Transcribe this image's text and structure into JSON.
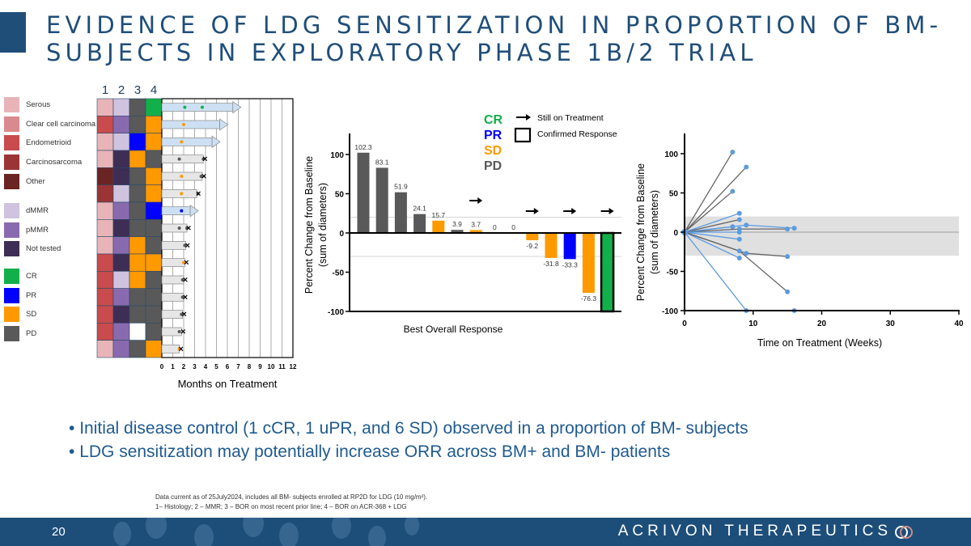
{
  "title": {
    "line1": "EVIDENCE OF LDG SENSITIZATION IN PROPORTION OF BM-",
    "line2": "SUBJECTS IN EXPLORATORY PHASE 1B/2 TRIAL"
  },
  "colors": {
    "Serous": "#e8b4b8",
    "Clear cell carcinoma": "#d98a8e",
    "Endometrioid": "#c94b4d",
    "Carcinosarcoma": "#9b3535",
    "Other": "#6b2424",
    "dMMR": "#cfc3e0",
    "pMMR": "#8a6aae",
    "Not tested": "#3e2d55",
    "CR": "#12b04a",
    "PR": "#0000ff",
    "SD": "#ff9900",
    "PD": "#595959",
    "NA": "#ffffff",
    "accent": "#1f4e79"
  },
  "legend": {
    "histology": [
      "Serous",
      "Clear cell carcinoma",
      "Endometrioid",
      "Carcinosarcoma",
      "Other"
    ],
    "mmr": [
      "dMMR",
      "pMMR",
      "Not tested"
    ],
    "response": [
      "CR",
      "PR",
      "SD",
      "PD"
    ]
  },
  "chart_data": [
    {
      "type": "heatmap",
      "column_labels": [
        "1",
        "2",
        "3",
        "4"
      ],
      "rows": [
        [
          "Serous",
          "dMMR",
          "PD",
          "CR"
        ],
        [
          "Endometrioid",
          "pMMR",
          "PD",
          "SD"
        ],
        [
          "Serous",
          "dMMR",
          "PR",
          "SD"
        ],
        [
          "Serous",
          "Not tested",
          "SD",
          "PD"
        ],
        [
          "Other",
          "Not tested",
          "PD",
          "SD"
        ],
        [
          "Carcinosarcoma",
          "dMMR",
          "PD",
          "SD"
        ],
        [
          "Serous",
          "pMMR",
          "PD",
          "PR"
        ],
        [
          "Serous",
          "Not tested",
          "PD",
          "PD"
        ],
        [
          "Serous",
          "pMMR",
          "SD",
          "PD"
        ],
        [
          "Endometrioid",
          "Not tested",
          "SD",
          "SD"
        ],
        [
          "Endometrioid",
          "dMMR",
          "SD",
          "PD"
        ],
        [
          "Endometrioid",
          "pMMR",
          "PD",
          "PD"
        ],
        [
          "Endometrioid",
          "Not tested",
          "PD",
          "PD"
        ],
        [
          "Endometrioid",
          "pMMR",
          "NA",
          "PD"
        ],
        [
          "Serous",
          "pMMR",
          "PD",
          "SD"
        ]
      ]
    },
    {
      "type": "bar",
      "orientation": "horizontal",
      "xlabel": "Months on Treatment",
      "xlim": [
        0,
        12
      ],
      "xticks": [
        0,
        1,
        2,
        3,
        4,
        5,
        6,
        7,
        8,
        9,
        10,
        11,
        12
      ],
      "bars": [
        {
          "months": 6.5,
          "ongoing": true,
          "assessments": [
            {
              "t": 2.1,
              "r": "CR"
            },
            {
              "t": 3.7,
              "r": "CR"
            }
          ]
        },
        {
          "months": 5.3,
          "ongoing": true,
          "assessments": [
            {
              "t": 2.0,
              "r": "SD"
            }
          ]
        },
        {
          "months": 4.6,
          "ongoing": true,
          "assessments": [
            {
              "t": 1.8,
              "r": "SD"
            }
          ]
        },
        {
          "months": 3.8,
          "ongoing": false,
          "assessments": [
            {
              "t": 1.6,
              "r": "PD"
            },
            {
              "t": 3.8,
              "r": "PD"
            }
          ]
        },
        {
          "months": 3.7,
          "ongoing": false,
          "assessments": [
            {
              "t": 1.8,
              "r": "SD"
            },
            {
              "t": 3.6,
              "r": "PD"
            }
          ]
        },
        {
          "months": 3.2,
          "ongoing": false,
          "assessments": [
            {
              "t": 1.8,
              "r": "SD"
            },
            {
              "t": 3.3,
              "r": "PD"
            }
          ]
        },
        {
          "months": 2.6,
          "ongoing": true,
          "assessments": [
            {
              "t": 1.8,
              "r": "PR"
            }
          ]
        },
        {
          "months": 2.3,
          "ongoing": false,
          "assessments": [
            {
              "t": 1.6,
              "r": "PD"
            },
            {
              "t": 2.3,
              "r": "PD"
            }
          ]
        },
        {
          "months": 2.2,
          "ongoing": false,
          "assessments": [
            {
              "t": 2.1,
              "r": "PD"
            }
          ]
        },
        {
          "months": 2.1,
          "ongoing": false,
          "assessments": [
            {
              "t": 2.0,
              "r": "SD"
            }
          ]
        },
        {
          "months": 2.0,
          "ongoing": false,
          "assessments": [
            {
              "t": 1.9,
              "r": "PD"
            }
          ]
        },
        {
          "months": 2.0,
          "ongoing": false,
          "assessments": [
            {
              "t": 1.9,
              "r": "PD"
            }
          ]
        },
        {
          "months": 1.9,
          "ongoing": false,
          "assessments": [
            {
              "t": 1.8,
              "r": "PD"
            }
          ]
        },
        {
          "months": 1.8,
          "ongoing": false,
          "assessments": [
            {
              "t": 1.6,
              "r": "PD"
            }
          ]
        },
        {
          "months": 1.6,
          "ongoing": false,
          "assessments": [
            {
              "t": 1.6,
              "r": "SD"
            }
          ]
        }
      ]
    },
    {
      "type": "bar",
      "xlabel": "Best Overall Response",
      "ylabel": "Percent Change from Baseline",
      "ylabel2": "(sum of diameters)",
      "ylim": [
        -100,
        100
      ],
      "yticks": [
        100,
        50,
        0,
        -50,
        -100
      ],
      "reference_lines": [
        20,
        -30
      ],
      "values": [
        102.3,
        83.1,
        51.9,
        24.1,
        15.7,
        3.9,
        3.7,
        0,
        0,
        -9.2,
        -31.8,
        -33.3,
        -76.3,
        -100
      ],
      "labels": [
        "102.3",
        "83.1",
        "51.9",
        "24.1",
        "15.7",
        "3.9",
        "3.7",
        "0",
        "0",
        "-9.2",
        "-31.8",
        "-33.3",
        "-76.3",
        ""
      ],
      "response": [
        "PD",
        "PD",
        "PD",
        "PD",
        "SD",
        "PD",
        "SD",
        "PD",
        "PD",
        "SD",
        "SD",
        "PR",
        "SD",
        "CR"
      ],
      "still_on_treatment": [
        false,
        false,
        false,
        false,
        false,
        false,
        true,
        false,
        false,
        true,
        false,
        true,
        false,
        true
      ],
      "confirmed_response": [
        false,
        false,
        false,
        false,
        false,
        false,
        false,
        false,
        false,
        false,
        false,
        false,
        false,
        true
      ],
      "legend": {
        "CR": "CR",
        "PR": "PR",
        "SD": "SD",
        "PD": "PD",
        "arrow": "Still on Treatment",
        "box": "Confirmed Response"
      }
    },
    {
      "type": "line",
      "xlabel": "Time on Treatment (Weeks)",
      "ylabel": "Percent Change from Baseline",
      "ylabel2": "(sum of diameters)",
      "xlim": [
        0,
        40
      ],
      "ylim": [
        -100,
        100
      ],
      "xticks": [
        0,
        10,
        20,
        30,
        40
      ],
      "yticks": [
        100,
        50,
        0,
        -50,
        -100
      ],
      "shaded_band": [
        -30,
        20
      ],
      "series": [
        {
          "color": "#666666",
          "points": [
            [
              0,
              0
            ],
            [
              7,
              102
            ]
          ]
        },
        {
          "color": "#666666",
          "points": [
            [
              0,
              0
            ],
            [
              9,
              83
            ]
          ]
        },
        {
          "color": "#666666",
          "points": [
            [
              0,
              0
            ],
            [
              7,
              52
            ]
          ]
        },
        {
          "color": "#5b9be0",
          "points": [
            [
              0,
              0
            ],
            [
              8,
              24
            ]
          ]
        },
        {
          "color": "#666666",
          "points": [
            [
              0,
              0
            ],
            [
              8,
              16
            ]
          ]
        },
        {
          "color": "#5b9be0",
          "points": [
            [
              0,
              0
            ],
            [
              7,
              7
            ]
          ]
        },
        {
          "color": "#5b9be0",
          "points": [
            [
              0,
              0
            ],
            [
              9,
              9
            ],
            [
              16,
              5
            ]
          ]
        },
        {
          "color": "#666666",
          "points": [
            [
              0,
              0
            ],
            [
              8,
              4
            ],
            [
              15,
              4
            ]
          ]
        },
        {
          "color": "#5b9be0",
          "points": [
            [
              0,
              0
            ],
            [
              8,
              0
            ]
          ]
        },
        {
          "color": "#5b9be0",
          "points": [
            [
              0,
              0
            ],
            [
              8,
              -9
            ]
          ]
        },
        {
          "color": "#666666",
          "points": [
            [
              0,
              0
            ],
            [
              9,
              -27
            ],
            [
              15,
              -31
            ]
          ]
        },
        {
          "color": "#5b9be0",
          "points": [
            [
              0,
              0
            ],
            [
              8,
              -33
            ]
          ]
        },
        {
          "color": "#666666",
          "points": [
            [
              0,
              0
            ],
            [
              8,
              -24
            ],
            [
              15,
              -76
            ]
          ]
        },
        {
          "color": "#5b9be0",
          "points": [
            [
              0,
              0
            ],
            [
              9,
              -100
            ],
            [
              16,
              -100
            ]
          ]
        }
      ]
    }
  ],
  "bullets": [
    "Initial disease control (1 cCR, 1 uPR, and 6 SD) observed in a proportion of BM- subjects",
    "LDG sensitization may potentially increase ORR across BM+ and BM- patients"
  ],
  "footnote": {
    "line1": "Data current as of 25July2024, includes all BM- subjects enrolled  at RP2D for LDG (10 mg/m²).",
    "line2": "1– Histology; 2 – MMR; 3 – BOR on most recent prior line; 4 – BOR on ACR-368 + LDG"
  },
  "footer": {
    "page": "20",
    "brand": "ACRIVON THERAPEUTICS"
  }
}
